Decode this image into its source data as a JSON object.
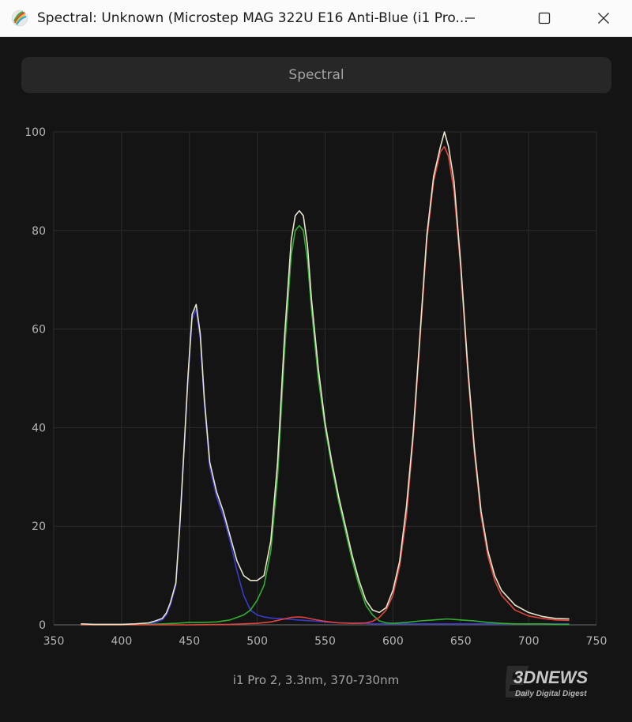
{
  "window": {
    "title": "Spectral: Unknown (Microstep MAG 322U E16 Anti-Blue (i1 Pro...",
    "icon": "color-wheel-icon",
    "controls": [
      "minimize-icon",
      "maximize-icon",
      "close-icon"
    ]
  },
  "header": {
    "label": "Spectral"
  },
  "caption": "i1 Pro 2, 3.3nm, 370-730nm",
  "watermark": {
    "logo": "3DNEWS",
    "tagline": "Daily Digital Digest"
  },
  "colors": {
    "background": "#141414",
    "grid": "#2c2c2c",
    "total": "#e8e4cc",
    "red": "#e0443b",
    "green": "#2fb12f",
    "blue": "#3a3ad0"
  },
  "chart_data": {
    "type": "line",
    "title": "",
    "xlabel": "",
    "ylabel": "",
    "xlim": [
      350,
      750
    ],
    "ylim": [
      0,
      100
    ],
    "x_ticks": [
      350,
      400,
      450,
      500,
      550,
      600,
      650,
      700,
      750
    ],
    "y_ticks": [
      0,
      20,
      40,
      60,
      80,
      100
    ],
    "grid": true,
    "legend": "none",
    "series": [
      {
        "key": "blue",
        "color": "#3a3ad0",
        "x": [
          370,
          380,
          390,
          400,
          410,
          420,
          425,
          430,
          433,
          436,
          440,
          443,
          446,
          449,
          452,
          455,
          458,
          461,
          465,
          470,
          475,
          480,
          485,
          490,
          495,
          500,
          505,
          510,
          515,
          520,
          525,
          530,
          535,
          540,
          545,
          550,
          555,
          560,
          565,
          570,
          575,
          580,
          585,
          590,
          600,
          610,
          620,
          630,
          640,
          650,
          660,
          670,
          680,
          690,
          700,
          710,
          720,
          730
        ],
        "y": [
          0.2,
          0.1,
          0.1,
          0.1,
          0.2,
          0.3,
          0.5,
          1,
          2,
          4,
          8,
          20,
          35,
          50,
          62,
          64,
          58,
          45,
          32,
          26,
          22,
          17,
          11,
          6,
          3,
          2,
          1.6,
          1.4,
          1.3,
          1.2,
          1.1,
          1,
          0.9,
          0.8,
          0.7,
          0.6,
          0.5,
          0.4,
          0.4,
          0.3,
          0.3,
          0.3,
          0.2,
          0.2,
          0.2,
          0.2,
          0.2,
          0.2,
          0.2,
          0.2,
          0.2,
          0.2,
          0.2,
          0.2,
          0.2,
          0.2,
          0.2,
          0.2
        ]
      },
      {
        "key": "green",
        "color": "#2fb12f",
        "x": [
          370,
          400,
          420,
          430,
          440,
          450,
          460,
          470,
          480,
          490,
          495,
          500,
          505,
          510,
          515,
          520,
          525,
          528,
          531,
          534,
          537,
          540,
          545,
          550,
          555,
          560,
          565,
          570,
          575,
          580,
          585,
          590,
          595,
          600,
          610,
          620,
          630,
          640,
          650,
          660,
          670,
          680,
          690,
          700,
          710,
          720,
          730
        ],
        "y": [
          0,
          0,
          0.1,
          0.2,
          0.3,
          0.5,
          0.5,
          0.6,
          1,
          2,
          3,
          5,
          8,
          15,
          30,
          55,
          75,
          80,
          81,
          80,
          74,
          64,
          50,
          40,
          32,
          25,
          19,
          13,
          8,
          4,
          2,
          0.8,
          0.4,
          0.3,
          0.5,
          0.8,
          1,
          1.2,
          1,
          0.8,
          0.5,
          0.3,
          0.2,
          0.2,
          0.2,
          0.1,
          0.1
        ]
      },
      {
        "key": "red",
        "color": "#e0443b",
        "x": [
          370,
          400,
          450,
          480,
          500,
          510,
          520,
          525,
          530,
          535,
          540,
          550,
          560,
          570,
          580,
          585,
          590,
          595,
          600,
          605,
          610,
          615,
          620,
          625,
          630,
          635,
          638,
          641,
          645,
          650,
          655,
          660,
          665,
          670,
          675,
          680,
          690,
          700,
          710,
          720,
          730
        ],
        "y": [
          0,
          0,
          0,
          0.1,
          0.3,
          0.6,
          1.2,
          1.5,
          1.6,
          1.5,
          1.2,
          0.7,
          0.4,
          0.3,
          0.4,
          0.7,
          1.5,
          3,
          6,
          12,
          22,
          38,
          58,
          78,
          90,
          96,
          97,
          95,
          88,
          72,
          52,
          35,
          22,
          14,
          9,
          6,
          3,
          1.8,
          1.3,
          1,
          0.9
        ]
      },
      {
        "key": "total",
        "color": "#e8e4cc",
        "x": [
          370,
          380,
          390,
          400,
          410,
          420,
          425,
          430,
          433,
          436,
          440,
          443,
          446,
          449,
          452,
          455,
          458,
          461,
          465,
          470,
          475,
          480,
          485,
          490,
          495,
          500,
          505,
          510,
          515,
          520,
          525,
          528,
          531,
          534,
          537,
          540,
          545,
          550,
          555,
          560,
          565,
          570,
          575,
          580,
          585,
          590,
          595,
          600,
          605,
          610,
          615,
          620,
          625,
          630,
          635,
          638,
          641,
          645,
          650,
          655,
          660,
          665,
          670,
          675,
          680,
          690,
          700,
          710,
          720,
          730
        ],
        "y": [
          0.2,
          0.1,
          0.1,
          0.1,
          0.2,
          0.4,
          0.8,
          1.3,
          2.4,
          4.5,
          8.5,
          20.5,
          35.5,
          50.5,
          63,
          65,
          59,
          46,
          33,
          27,
          23,
          18,
          13,
          10,
          9,
          9,
          10,
          17,
          33,
          58,
          78,
          83,
          84,
          83,
          77,
          66,
          52,
          41,
          33,
          26,
          20,
          14,
          9,
          5,
          3,
          2.5,
          3.5,
          7,
          13,
          24,
          39,
          59,
          79,
          91,
          97,
          100,
          97,
          90,
          73,
          53,
          36,
          23,
          15,
          10,
          7,
          4,
          2.5,
          1.7,
          1.3,
          1.2
        ]
      }
    ]
  }
}
